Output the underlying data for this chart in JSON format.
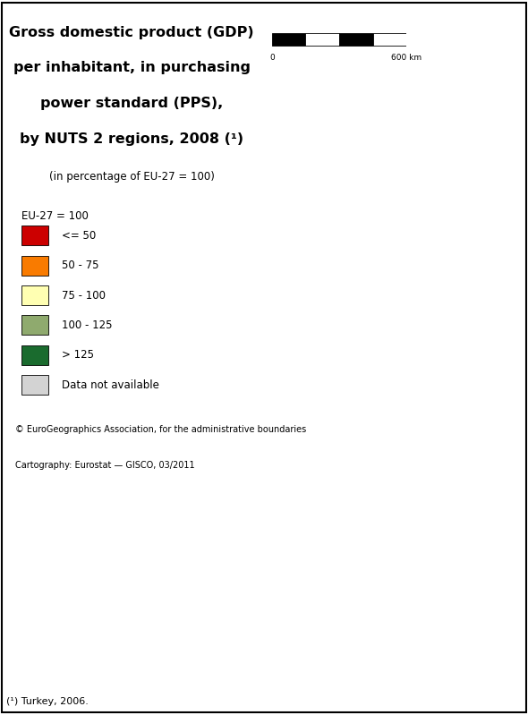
{
  "title_line1": "Gross domestic product (GDP)",
  "title_line2": "per inhabitant, in purchasing",
  "title_line3": "power standard (PPS),",
  "title_line4": "by NUTS 2 regions, 2008 (¹)",
  "subtitle": "(in percentage of EU-27 = 100)",
  "legend_title": "EU-27 = 100",
  "legend_items": [
    {
      "label": "<= 50",
      "color": "#cc0000"
    },
    {
      "label": "50 - 75",
      "color": "#f97b00"
    },
    {
      "label": "75 - 100",
      "color": "#ffffb2"
    },
    {
      "label": "100 - 125",
      "color": "#8faa6e"
    },
    {
      "label": "> 125",
      "color": "#1a6b2e"
    },
    {
      "label": "Data not available",
      "color": "#d3d3d3"
    }
  ],
  "copyright_line1": "© EuroGeographics Association, for the administrative boundaries",
  "copyright_line2": "Cartography: Eurostat — GISCO, 03/2011",
  "footnote": "(¹) Turkey, 2006.",
  "scalebar_label": "600 km",
  "background_color": "#cce6f4",
  "fig_width": 5.9,
  "fig_height": 7.99,
  "dpi": 100,
  "title_fontsize": 11.5,
  "subtitle_fontsize": 8.5,
  "legend_fontsize": 8.5,
  "copyright_fontsize": 7.0,
  "footnote_fontsize": 8.0,
  "map_extent_lon": [
    -11,
    44
  ],
  "map_extent_lat": [
    34,
    72
  ]
}
